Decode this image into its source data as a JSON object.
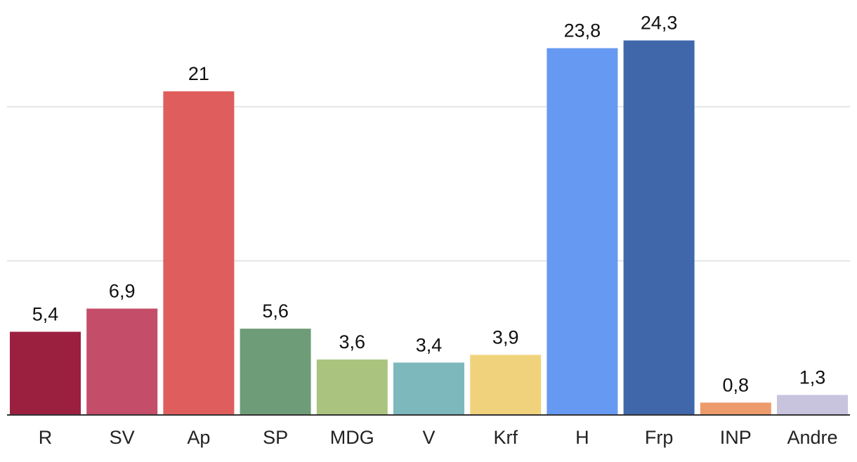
{
  "chart_data": {
    "type": "bar",
    "title": "",
    "xlabel": "",
    "ylabel": "",
    "ylim": [
      0,
      25
    ],
    "gridlines": [
      10,
      20
    ],
    "categories": [
      "R",
      "SV",
      "Ap",
      "SP",
      "MDG",
      "V",
      "Krf",
      "H",
      "Frp",
      "INP",
      "Andre"
    ],
    "values": [
      5.4,
      6.9,
      21,
      5.6,
      3.6,
      3.4,
      3.9,
      23.8,
      24.3,
      0.8,
      1.3
    ],
    "value_labels": [
      "5,4",
      "6,9",
      "21",
      "5,6",
      "3,6",
      "3,4",
      "3,9",
      "23,8",
      "24,3",
      "0,8",
      "1,3"
    ],
    "colors": [
      "#9b2040",
      "#c44d69",
      "#e05d5d",
      "#6f9c78",
      "#aac47f",
      "#7db8bc",
      "#f1d27c",
      "#6699f1",
      "#3f67aa",
      "#ee9b6b",
      "#c8c4de"
    ]
  }
}
